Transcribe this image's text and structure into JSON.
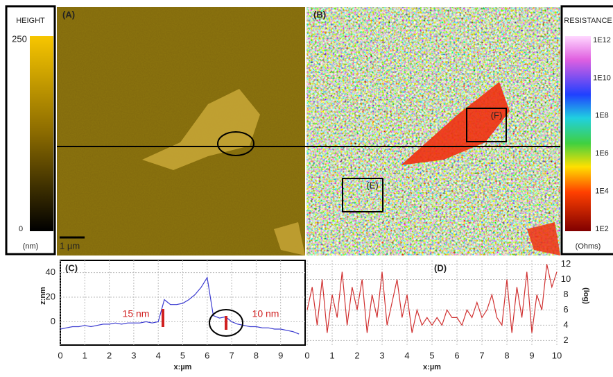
{
  "panel_labels": {
    "A": "(A)",
    "B": "(B)",
    "E": "(E)",
    "F": "(F)"
  },
  "scale_bar": "1 µm",
  "height_bar": {
    "title": "HEIGHT",
    "max": "250",
    "min": "0",
    "unit": "(nm)"
  },
  "resistance_bar": {
    "title": "RESISTANCE",
    "ticks": [
      "1E12",
      "1E10",
      "1E8",
      "1E6",
      "1E4",
      "1E2"
    ],
    "unit": "(Ohms)"
  },
  "chart_data": [
    {
      "type": "line",
      "panel": "(C)",
      "ylabel": "z:nm",
      "xlabel": "x:µm",
      "color": "#3a3ad0",
      "x": [
        0,
        0.25,
        0.5,
        0.75,
        1,
        1.25,
        1.5,
        1.75,
        2,
        2.25,
        2.5,
        2.75,
        3,
        3.25,
        3.5,
        3.75,
        4,
        4.25,
        4.5,
        4.75,
        5,
        5.25,
        5.5,
        5.75,
        6,
        6.25,
        6.5,
        6.75,
        7,
        7.25,
        7.5,
        7.75,
        8,
        8.25,
        8.5,
        8.75,
        9,
        9.25,
        9.5,
        9.75
      ],
      "values": [
        -6,
        -5,
        -4,
        -4,
        -3,
        -4,
        -3,
        -2,
        -2,
        -1,
        -2,
        -1,
        -1,
        -1,
        0,
        -1,
        0,
        18,
        14,
        14,
        15,
        18,
        22,
        28,
        36,
        5,
        3,
        4,
        0,
        -2,
        -3,
        -4,
        -4,
        -5,
        -5,
        -6,
        -6,
        -7,
        -8,
        -10
      ],
      "xlim": [
        0,
        10
      ],
      "xticks": [
        0,
        1,
        2,
        3,
        4,
        5,
        6,
        7,
        8,
        9
      ],
      "ylim": [
        -19,
        50
      ],
      "yticks": [
        0,
        20,
        40
      ],
      "grid": true,
      "annotations": [
        "15 nm",
        "10 nm"
      ]
    },
    {
      "type": "line",
      "panel": "(D)",
      "ylabel": "(log)",
      "xlabel": "x:µm",
      "color": "#d03030",
      "x": [
        0,
        0.2,
        0.4,
        0.6,
        0.8,
        1,
        1.2,
        1.4,
        1.6,
        1.8,
        2,
        2.2,
        2.4,
        2.6,
        2.8,
        3,
        3.2,
        3.4,
        3.6,
        3.8,
        4,
        4.2,
        4.4,
        4.6,
        4.8,
        5,
        5.2,
        5.4,
        5.6,
        5.8,
        6,
        6.2,
        6.4,
        6.6,
        6.8,
        7,
        7.2,
        7.4,
        7.6,
        7.8,
        8,
        8.2,
        8.4,
        8.6,
        8.8,
        9,
        9.2,
        9.4,
        9.6,
        9.8,
        10
      ],
      "values": [
        6,
        9,
        4,
        10,
        3,
        8,
        5,
        11,
        4,
        9,
        6,
        10,
        3,
        8,
        5,
        11,
        4,
        7,
        10,
        5,
        8,
        3,
        6,
        4,
        5,
        4,
        5,
        4,
        6,
        5,
        5,
        4,
        6,
        5,
        7,
        5,
        6,
        8,
        5,
        4,
        10,
        3,
        9,
        5,
        11,
        3,
        8,
        6,
        12,
        9,
        11
      ],
      "xlim": [
        0,
        10
      ],
      "xticks": [
        0,
        1,
        2,
        3,
        4,
        5,
        6,
        7,
        8,
        9,
        10
      ],
      "ylim": [
        1.4,
        12.5
      ],
      "yticks": [
        2,
        4,
        6,
        8,
        10,
        12
      ],
      "grid": true
    }
  ]
}
